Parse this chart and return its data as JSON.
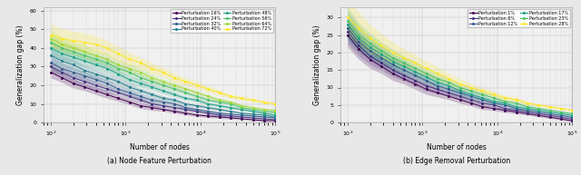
{
  "plot_a": {
    "title": "(a) Node Feature Perturbation",
    "ylabel": "Generalization gap (%)",
    "xlabel": "Number of nodes",
    "ylim": [
      0,
      62
    ],
    "yticks": [
      0,
      10,
      20,
      30,
      40,
      50,
      60
    ],
    "xlim": [
      80,
      100000
    ],
    "perturbation_levels": [
      16,
      24,
      32,
      40,
      48,
      56,
      64,
      72
    ],
    "x_nodes": [
      100,
      141,
      200,
      282,
      400,
      562,
      794,
      1122,
      1585,
      2239,
      3162,
      4467,
      6310,
      8913,
      12589,
      17783,
      25119,
      35481,
      50119,
      70795,
      100000
    ],
    "means": [
      [
        27,
        24,
        21,
        19,
        17,
        15,
        13,
        11,
        9,
        8,
        7,
        6,
        5,
        4,
        3.5,
        3,
        2.5,
        2,
        1.5,
        1,
        1
      ],
      [
        30,
        27,
        24,
        22,
        20,
        18,
        16,
        14,
        12,
        10,
        9,
        8,
        7,
        6,
        5,
        4,
        3.5,
        3,
        2.5,
        2,
        1.5
      ],
      [
        32,
        29,
        27,
        25,
        23,
        21,
        18,
        16,
        14,
        12,
        11,
        10,
        8,
        7,
        6,
        5,
        4.5,
        4,
        3.5,
        3,
        2.5
      ],
      [
        36,
        33,
        31,
        28,
        26,
        24,
        22,
        19,
        17,
        15,
        13,
        12,
        10,
        9,
        8,
        7,
        6,
        5,
        4.5,
        4,
        3
      ],
      [
        40,
        37,
        35,
        33,
        31,
        29,
        26,
        23,
        21,
        19,
        17,
        15,
        13,
        12,
        10,
        9,
        8,
        7,
        6,
        5,
        4
      ],
      [
        43,
        40,
        38,
        36,
        34,
        32,
        29,
        27,
        24,
        22,
        20,
        18,
        16,
        14,
        12,
        11,
        10,
        8,
        7,
        6,
        5.5
      ],
      [
        45,
        42,
        40,
        38,
        36,
        34,
        31,
        29,
        27,
        24,
        22,
        20,
        18,
        16,
        14,
        12,
        11,
        9,
        8,
        7,
        6.5
      ],
      [
        47,
        45,
        44,
        43,
        42,
        40,
        37,
        34,
        32,
        29,
        27,
        24,
        22,
        20,
        18,
        16,
        14,
        13,
        12,
        11,
        10
      ]
    ],
    "stds": [
      [
        3,
        2.5,
        2.5,
        2,
        2,
        2,
        1.5,
        1.5,
        1.5,
        1.5,
        1,
        1,
        1,
        0.8,
        0.8,
        0.8,
        0.6,
        0.5,
        0.5,
        0.4,
        0.4
      ],
      [
        3,
        2.5,
        2.5,
        2.5,
        2,
        2,
        1.5,
        1.5,
        1.5,
        1.5,
        1,
        1,
        1,
        0.8,
        0.8,
        0.8,
        0.6,
        0.5,
        0.5,
        0.4,
        0.4
      ],
      [
        3.5,
        3,
        2.5,
        2.5,
        2,
        2,
        2,
        1.5,
        1.5,
        1.5,
        1.2,
        1,
        1,
        0.8,
        0.8,
        0.8,
        0.6,
        0.5,
        0.5,
        0.4,
        0.4
      ],
      [
        3.5,
        3,
        3,
        2.5,
        2.5,
        2,
        2,
        2,
        1.5,
        1.5,
        1.2,
        1.2,
        1,
        0.8,
        0.8,
        0.8,
        0.6,
        0.5,
        0.5,
        0.5,
        0.4
      ],
      [
        4,
        3.5,
        3,
        3,
        2.5,
        2.5,
        2,
        2,
        2,
        1.5,
        1.5,
        1.2,
        1,
        1,
        0.8,
        0.8,
        0.8,
        0.6,
        0.5,
        0.5,
        0.5
      ],
      [
        4,
        3.5,
        3.5,
        3,
        2.5,
        2.5,
        2.5,
        2,
        2,
        1.5,
        1.5,
        1.5,
        1.2,
        1,
        1,
        0.8,
        0.8,
        0.6,
        0.5,
        0.5,
        0.5
      ],
      [
        4.5,
        4,
        3.5,
        3.5,
        3,
        3,
        2.5,
        2.5,
        2,
        2,
        1.5,
        1.5,
        1.2,
        1.2,
        1,
        1,
        0.8,
        0.8,
        0.6,
        0.5,
        0.5
      ],
      [
        6,
        5.5,
        5,
        5,
        4.5,
        4,
        4,
        3.5,
        3,
        3,
        2.5,
        2.5,
        2,
        2,
        1.5,
        1.5,
        1.2,
        1,
        1,
        0.8,
        0.8
      ]
    ],
    "colors": [
      "#440154",
      "#46327e",
      "#365c8d",
      "#277f8e",
      "#1fa187",
      "#4ac16d",
      "#a0da39",
      "#fde725"
    ]
  },
  "plot_b": {
    "title": "(b) Edge Removal Perturbation",
    "ylabel": "Generalization gap (%)",
    "xlabel": "Number of nodes",
    "ylim": [
      0,
      33
    ],
    "yticks": [
      0,
      5,
      10,
      15,
      20,
      25,
      30
    ],
    "xlim": [
      80,
      100000
    ],
    "perturbation_levels": [
      1,
      6,
      12,
      17,
      23,
      28
    ],
    "x_nodes": [
      100,
      141,
      200,
      282,
      400,
      562,
      794,
      1122,
      1585,
      2239,
      3162,
      4467,
      6310,
      8913,
      12589,
      17783,
      25119,
      35481,
      50119,
      70795,
      100000
    ],
    "means": [
      [
        25,
        21,
        18,
        16,
        14,
        12.5,
        11,
        9.5,
        8.5,
        7.5,
        6.5,
        5.5,
        4.5,
        4,
        3.5,
        3,
        2.5,
        2,
        1.5,
        1,
        0.5
      ],
      [
        26,
        22,
        19,
        17,
        15,
        13.5,
        12,
        10.5,
        9.5,
        8.5,
        7.5,
        6.5,
        5.5,
        5,
        4,
        3.5,
        3,
        2.5,
        2,
        1.5,
        1
      ],
      [
        27,
        23,
        20.5,
        18.5,
        16.5,
        15,
        13.5,
        12,
        10.5,
        9.5,
        8.5,
        7.5,
        6.5,
        5.5,
        5,
        4,
        3.5,
        3,
        2.5,
        2,
        1.5
      ],
      [
        28,
        24,
        21.5,
        19.5,
        17.5,
        16,
        14.5,
        13,
        11.5,
        10.5,
        9,
        8,
        7,
        6,
        5.5,
        4.5,
        4,
        3.5,
        3,
        2.5,
        2
      ],
      [
        29,
        25,
        22.5,
        20.5,
        18.5,
        17,
        15.5,
        14,
        12.5,
        11.5,
        10,
        9,
        8,
        7,
        6,
        5.5,
        4.5,
        4,
        3.5,
        3,
        2.5
      ],
      [
        30,
        27,
        24,
        22,
        20,
        18.5,
        17,
        15.5,
        14,
        12.5,
        11,
        10,
        9,
        8,
        7,
        6.5,
        5.5,
        5,
        4.5,
        4,
        3.5
      ]
    ],
    "stds": [
      [
        3.5,
        3,
        2.5,
        2,
        2,
        1.5,
        1.5,
        1.5,
        1.2,
        1,
        1,
        0.8,
        0.8,
        0.6,
        0.6,
        0.5,
        0.4,
        0.4,
        0.3,
        0.3,
        0.3
      ],
      [
        3.5,
        3,
        2.5,
        2,
        2,
        1.5,
        1.5,
        1.5,
        1.2,
        1,
        1,
        0.8,
        0.8,
        0.6,
        0.6,
        0.5,
        0.4,
        0.4,
        0.3,
        0.3,
        0.3
      ],
      [
        3.5,
        3,
        2.5,
        2.5,
        2,
        2,
        1.5,
        1.5,
        1.2,
        1.2,
        1,
        0.8,
        0.8,
        0.6,
        0.6,
        0.5,
        0.4,
        0.4,
        0.3,
        0.3,
        0.3
      ],
      [
        4,
        3.5,
        3,
        2.5,
        2,
        2,
        1.5,
        1.5,
        1.5,
        1.2,
        1,
        1,
        0.8,
        0.6,
        0.6,
        0.5,
        0.4,
        0.4,
        0.3,
        0.3,
        0.3
      ],
      [
        4,
        3.5,
        3,
        2.5,
        2.5,
        2,
        2,
        1.5,
        1.5,
        1.2,
        1.2,
        1,
        1,
        0.8,
        0.6,
        0.6,
        0.5,
        0.4,
        0.4,
        0.3,
        0.3
      ],
      [
        5,
        4.5,
        4,
        3.5,
        3,
        2.5,
        2.5,
        2,
        2,
        1.5,
        1.5,
        1.2,
        1,
        1,
        0.8,
        0.8,
        0.6,
        0.5,
        0.5,
        0.4,
        0.4
      ]
    ],
    "colors": [
      "#440154",
      "#46327e",
      "#365c8d",
      "#1fa187",
      "#4ac16d",
      "#fde725"
    ]
  },
  "figure_bg": "#e8e8e8",
  "axes_bg": "#f0f0f0"
}
